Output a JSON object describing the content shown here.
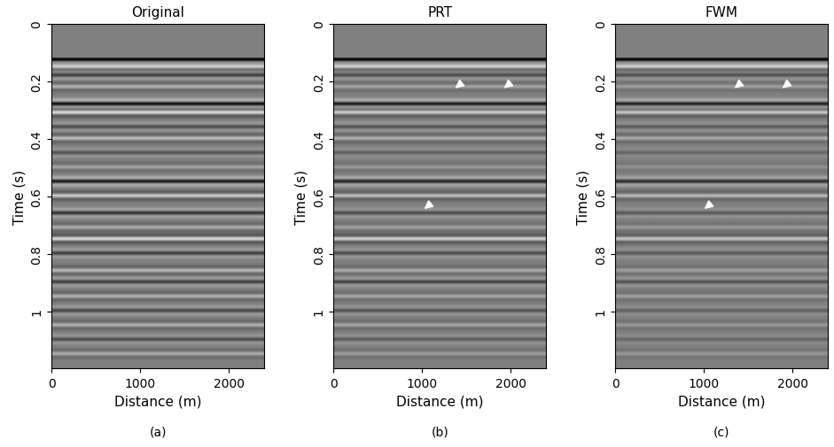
{
  "chart_data": [
    {
      "type": "image",
      "title": "Original",
      "caption": "(a)",
      "xlabel": "Distance (m)",
      "ylabel": "Time (s)",
      "xlim": [
        0,
        2400
      ],
      "ylim": [
        1.2,
        0
      ],
      "xticks": [
        0,
        1000,
        2000
      ],
      "yticks": [
        0,
        0.2,
        0.4,
        0.6,
        0.8,
        1
      ],
      "data_start": 0.115,
      "vlim": [
        -1,
        1
      ],
      "reflectors": [
        {
          "time": 0.125,
          "amplitude": -1.0
        },
        {
          "time": 0.15,
          "amplitude": 0.6
        },
        {
          "time": 0.18,
          "amplitude": -0.5
        },
        {
          "time": 0.22,
          "amplitude": 0.4
        },
        {
          "time": 0.28,
          "amplitude": -0.9
        },
        {
          "time": 0.31,
          "amplitude": 0.7
        },
        {
          "time": 0.36,
          "amplitude": -0.4
        },
        {
          "time": 0.4,
          "amplitude": 0.5
        },
        {
          "time": 0.45,
          "amplitude": -0.35
        },
        {
          "time": 0.5,
          "amplitude": 0.3
        },
        {
          "time": 0.55,
          "amplitude": -0.8
        },
        {
          "time": 0.6,
          "amplitude": 0.6
        },
        {
          "time": 0.66,
          "amplitude": -0.6
        },
        {
          "time": 0.71,
          "amplitude": 0.35
        },
        {
          "time": 0.75,
          "amplitude": 0.7
        },
        {
          "time": 0.8,
          "amplitude": -0.5
        },
        {
          "time": 0.86,
          "amplitude": 0.45
        },
        {
          "time": 0.9,
          "amplitude": -0.5
        },
        {
          "time": 0.95,
          "amplitude": 0.4
        },
        {
          "time": 1.0,
          "amplitude": -0.45
        },
        {
          "time": 1.05,
          "amplitude": 0.4
        },
        {
          "time": 1.1,
          "amplitude": -0.4
        },
        {
          "time": 1.15,
          "amplitude": 0.35
        }
      ],
      "arrows": []
    },
    {
      "type": "image",
      "title": "PRT",
      "caption": "(b)",
      "xlabel": "Distance (m)",
      "ylabel": "Time (s)",
      "xlim": [
        0,
        2400
      ],
      "ylim": [
        1.2,
        0
      ],
      "xticks": [
        0,
        1000,
        2000
      ],
      "yticks": [
        0,
        0.2,
        0.4,
        0.6,
        0.8,
        1
      ],
      "data_start": 0.115,
      "vlim": [
        -1,
        1
      ],
      "reflectors": [
        {
          "time": 0.125,
          "amplitude": -1.0
        },
        {
          "time": 0.15,
          "amplitude": 0.6
        },
        {
          "time": 0.18,
          "amplitude": -0.4
        },
        {
          "time": 0.22,
          "amplitude": 0.3
        },
        {
          "time": 0.28,
          "amplitude": -0.8
        },
        {
          "time": 0.31,
          "amplitude": 0.6
        },
        {
          "time": 0.36,
          "amplitude": -0.35
        },
        {
          "time": 0.4,
          "amplitude": 0.4
        },
        {
          "time": 0.45,
          "amplitude": -0.25
        },
        {
          "time": 0.5,
          "amplitude": 0.2
        },
        {
          "time": 0.55,
          "amplitude": -0.7
        },
        {
          "time": 0.6,
          "amplitude": 0.5
        },
        {
          "time": 0.66,
          "amplitude": -0.4
        },
        {
          "time": 0.71,
          "amplitude": 0.25
        },
        {
          "time": 0.75,
          "amplitude": 0.65
        },
        {
          "time": 0.8,
          "amplitude": -0.4
        },
        {
          "time": 0.86,
          "amplitude": 0.35
        },
        {
          "time": 0.9,
          "amplitude": -0.45
        },
        {
          "time": 0.95,
          "amplitude": 0.3
        },
        {
          "time": 1.0,
          "amplitude": -0.35
        },
        {
          "time": 1.05,
          "amplitude": 0.3
        },
        {
          "time": 1.1,
          "amplitude": -0.3
        },
        {
          "time": 1.15,
          "amplitude": 0.25
        }
      ],
      "arrows": [
        [
          1350,
          0.23
        ],
        [
          1900,
          0.23
        ],
        [
          1000,
          0.65
        ]
      ]
    },
    {
      "type": "image",
      "title": "FWM",
      "caption": "(c)",
      "xlabel": "Distance (m)",
      "ylabel": "Time (s)",
      "xlim": [
        0,
        2400
      ],
      "ylim": [
        1.2,
        0
      ],
      "xticks": [
        0,
        1000,
        2000
      ],
      "yticks": [
        0,
        0.2,
        0.4,
        0.6,
        0.8,
        1
      ],
      "data_start": 0.115,
      "vlim": [
        -1,
        1
      ],
      "reflectors": [
        {
          "time": 0.125,
          "amplitude": -1.0
        },
        {
          "time": 0.15,
          "amplitude": 0.6
        },
        {
          "time": 0.18,
          "amplitude": -0.35
        },
        {
          "time": 0.22,
          "amplitude": 0.25
        },
        {
          "time": 0.28,
          "amplitude": -0.75
        },
        {
          "time": 0.31,
          "amplitude": 0.55
        },
        {
          "time": 0.36,
          "amplitude": -0.3
        },
        {
          "time": 0.4,
          "amplitude": 0.35
        },
        {
          "time": 0.45,
          "amplitude": -0.2
        },
        {
          "time": 0.5,
          "amplitude": 0.15
        },
        {
          "time": 0.55,
          "amplitude": -0.65
        },
        {
          "time": 0.6,
          "amplitude": 0.45
        },
        {
          "time": 0.66,
          "amplitude": -0.3
        },
        {
          "time": 0.71,
          "amplitude": 0.2
        },
        {
          "time": 0.75,
          "amplitude": 0.55
        },
        {
          "time": 0.8,
          "amplitude": -0.3
        },
        {
          "time": 0.86,
          "amplitude": 0.25
        },
        {
          "time": 0.9,
          "amplitude": -0.35
        },
        {
          "time": 0.95,
          "amplitude": 0.25
        },
        {
          "time": 1.0,
          "amplitude": -0.25
        },
        {
          "time": 1.05,
          "amplitude": 0.2
        },
        {
          "time": 1.1,
          "amplitude": -0.2
        },
        {
          "time": 1.15,
          "amplitude": 0.2
        }
      ],
      "arrows": [
        [
          1320,
          0.23
        ],
        [
          1860,
          0.23
        ],
        [
          980,
          0.65
        ]
      ]
    }
  ]
}
